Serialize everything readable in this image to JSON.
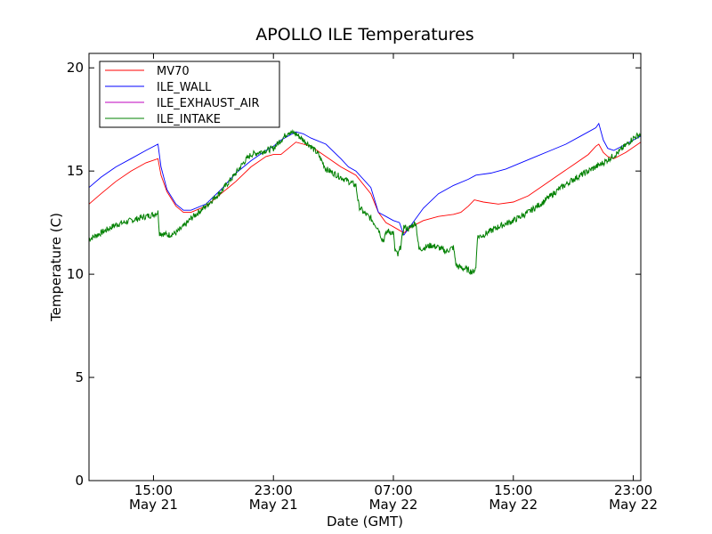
{
  "chart_data": {
    "type": "line",
    "title": "APOLLO ILE Temperatures",
    "xlabel": "Date (GMT)",
    "ylabel": "Temperature (C)",
    "xlim": [
      10.7,
      47.5
    ],
    "ylim": [
      0,
      20.7
    ],
    "grid": false,
    "legend_position": "top-left",
    "x_ticks": [
      {
        "x": 15,
        "time": "15:00",
        "date": "May 21"
      },
      {
        "x": 23,
        "time": "23:00",
        "date": "May 21"
      },
      {
        "x": 31,
        "time": "07:00",
        "date": "May 22"
      },
      {
        "x": 39,
        "time": "15:00",
        "date": "May 22"
      },
      {
        "x": 47,
        "time": "23:00",
        "date": "May 22"
      }
    ],
    "y_ticks": [
      0,
      5,
      10,
      15,
      20
    ],
    "series": [
      {
        "name": "MV70",
        "color": "#ff0000",
        "points": [
          [
            10.7,
            13.4
          ],
          [
            11.5,
            13.9
          ],
          [
            12.5,
            14.5
          ],
          [
            13.5,
            15.0
          ],
          [
            14.5,
            15.4
          ],
          [
            15.3,
            15.6
          ],
          [
            15.5,
            14.8
          ],
          [
            15.9,
            14.0
          ],
          [
            16.5,
            13.3
          ],
          [
            17.0,
            13.0
          ],
          [
            17.5,
            13.0
          ],
          [
            18.5,
            13.3
          ],
          [
            19.5,
            13.9
          ],
          [
            20.5,
            14.5
          ],
          [
            21.5,
            15.2
          ],
          [
            22.5,
            15.7
          ],
          [
            23.0,
            15.8
          ],
          [
            23.5,
            15.8
          ],
          [
            24.5,
            16.4
          ],
          [
            25.0,
            16.3
          ],
          [
            25.5,
            16.2
          ],
          [
            26.5,
            15.7
          ],
          [
            27.5,
            15.2
          ],
          [
            28.0,
            15.0
          ],
          [
            28.5,
            14.8
          ],
          [
            29.5,
            13.9
          ],
          [
            30.0,
            13.0
          ],
          [
            30.5,
            12.5
          ],
          [
            31.0,
            12.3
          ],
          [
            31.7,
            12.0
          ],
          [
            32.2,
            12.3
          ],
          [
            33.0,
            12.6
          ],
          [
            34.0,
            12.8
          ],
          [
            35.0,
            12.9
          ],
          [
            35.5,
            13.0
          ],
          [
            36.0,
            13.3
          ],
          [
            36.4,
            13.6
          ],
          [
            37.0,
            13.5
          ],
          [
            38.0,
            13.4
          ],
          [
            39.0,
            13.5
          ],
          [
            40.0,
            13.8
          ],
          [
            41.0,
            14.3
          ],
          [
            42.0,
            14.8
          ],
          [
            43.0,
            15.3
          ],
          [
            44.0,
            15.8
          ],
          [
            44.5,
            16.2
          ],
          [
            44.7,
            16.3
          ],
          [
            45.0,
            15.9
          ],
          [
            45.3,
            15.7
          ],
          [
            45.7,
            15.6
          ],
          [
            46.5,
            15.9
          ],
          [
            47.5,
            16.4
          ]
        ]
      },
      {
        "name": "ILE_WALL",
        "color": "#0000ff",
        "points": [
          [
            10.7,
            14.2
          ],
          [
            11.5,
            14.7
          ],
          [
            12.5,
            15.2
          ],
          [
            13.5,
            15.6
          ],
          [
            14.5,
            16.0
          ],
          [
            15.3,
            16.3
          ],
          [
            15.5,
            15.2
          ],
          [
            15.9,
            14.1
          ],
          [
            16.5,
            13.4
          ],
          [
            17.0,
            13.1
          ],
          [
            17.5,
            13.1
          ],
          [
            18.5,
            13.4
          ],
          [
            19.5,
            14.1
          ],
          [
            20.5,
            14.9
          ],
          [
            21.5,
            15.5
          ],
          [
            22.5,
            16.0
          ],
          [
            23.0,
            16.2
          ],
          [
            23.5,
            16.5
          ],
          [
            24.5,
            16.9
          ],
          [
            25.0,
            16.8
          ],
          [
            25.5,
            16.6
          ],
          [
            26.5,
            16.3
          ],
          [
            27.5,
            15.6
          ],
          [
            28.0,
            15.2
          ],
          [
            28.5,
            15.0
          ],
          [
            29.5,
            14.2
          ],
          [
            30.0,
            13.0
          ],
          [
            30.5,
            12.8
          ],
          [
            31.0,
            12.6
          ],
          [
            31.4,
            12.5
          ],
          [
            31.7,
            11.9
          ],
          [
            32.2,
            12.4
          ],
          [
            33.0,
            13.2
          ],
          [
            34.0,
            13.9
          ],
          [
            35.0,
            14.3
          ],
          [
            36.0,
            14.6
          ],
          [
            36.5,
            14.8
          ],
          [
            37.5,
            14.9
          ],
          [
            38.5,
            15.1
          ],
          [
            39.5,
            15.4
          ],
          [
            40.5,
            15.7
          ],
          [
            41.5,
            16.0
          ],
          [
            42.5,
            16.3
          ],
          [
            43.5,
            16.7
          ],
          [
            44.5,
            17.1
          ],
          [
            44.7,
            17.3
          ],
          [
            45.0,
            16.5
          ],
          [
            45.3,
            16.1
          ],
          [
            45.7,
            16.0
          ],
          [
            46.5,
            16.3
          ],
          [
            47.5,
            16.7
          ]
        ]
      },
      {
        "name": "ILE_EXHAUST_AIR",
        "color": "#bf00bf",
        "points": []
      },
      {
        "name": "ILE_INTAKE",
        "color": "#008000",
        "noise": 0.15,
        "points": [
          [
            10.7,
            11.7
          ],
          [
            11.5,
            12.0
          ],
          [
            12.5,
            12.4
          ],
          [
            13.5,
            12.6
          ],
          [
            14.5,
            12.8
          ],
          [
            15.0,
            12.9
          ],
          [
            15.3,
            13.0
          ],
          [
            15.4,
            12.0
          ],
          [
            16.0,
            11.9
          ],
          [
            16.5,
            12.0
          ],
          [
            17.0,
            12.3
          ],
          [
            17.5,
            12.7
          ],
          [
            18.5,
            13.3
          ],
          [
            19.5,
            14.0
          ],
          [
            20.5,
            14.9
          ],
          [
            21.0,
            15.4
          ],
          [
            21.5,
            15.8
          ],
          [
            22.0,
            15.9
          ],
          [
            22.5,
            16.0
          ],
          [
            23.0,
            16.1
          ],
          [
            23.5,
            16.5
          ],
          [
            24.0,
            16.9
          ],
          [
            24.5,
            16.8
          ],
          [
            25.0,
            16.5
          ],
          [
            25.5,
            16.2
          ],
          [
            26.0,
            15.8
          ],
          [
            26.5,
            15.1
          ],
          [
            27.5,
            14.7
          ],
          [
            28.5,
            14.3
          ],
          [
            28.7,
            13.3
          ],
          [
            29.0,
            13.0
          ],
          [
            29.5,
            12.7
          ],
          [
            30.0,
            12.2
          ],
          [
            30.3,
            11.6
          ],
          [
            30.6,
            12.1
          ],
          [
            31.0,
            12.0
          ],
          [
            31.1,
            11.2
          ],
          [
            31.3,
            10.9
          ],
          [
            31.5,
            11.4
          ],
          [
            31.7,
            12.3
          ],
          [
            32.0,
            12.2
          ],
          [
            32.5,
            12.5
          ],
          [
            32.7,
            11.2
          ],
          [
            33.5,
            11.4
          ],
          [
            34.0,
            11.3
          ],
          [
            34.5,
            11.1
          ],
          [
            35.0,
            11.3
          ],
          [
            35.2,
            10.4
          ],
          [
            36.0,
            10.2
          ],
          [
            36.3,
            10.1
          ],
          [
            36.5,
            10.3
          ],
          [
            36.6,
            11.8
          ],
          [
            37.0,
            11.9
          ],
          [
            38.0,
            12.3
          ],
          [
            39.0,
            12.6
          ],
          [
            40.0,
            13.0
          ],
          [
            41.0,
            13.5
          ],
          [
            42.0,
            14.1
          ],
          [
            43.0,
            14.6
          ],
          [
            44.0,
            15.0
          ],
          [
            45.0,
            15.4
          ],
          [
            46.0,
            15.9
          ],
          [
            47.0,
            16.6
          ],
          [
            47.5,
            16.8
          ]
        ]
      }
    ]
  }
}
